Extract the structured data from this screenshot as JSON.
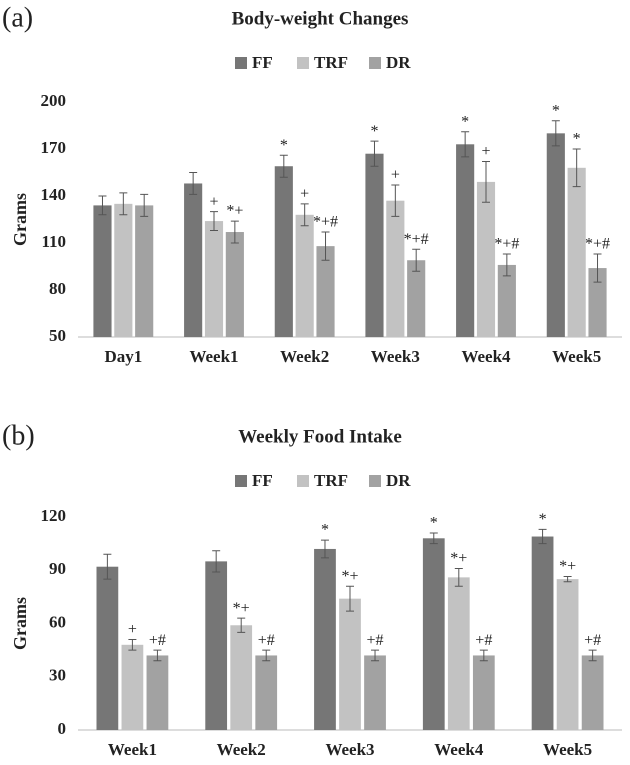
{
  "chart_data": [
    {
      "type": "bar",
      "panel": "(a)",
      "title": "Body-weight Changes",
      "y_label": "Grams",
      "legend": "top",
      "categories": [
        "Day1",
        "Week1",
        "Week2",
        "Week3",
        "Week4",
        "Week5"
      ],
      "ylim": [
        50,
        200
      ],
      "yticks": [
        50,
        80,
        110,
        140,
        170,
        200
      ],
      "series": [
        {
          "name": "FF",
          "color": "#767676",
          "values": [
            134,
            148,
            159,
            167,
            173,
            180
          ],
          "errors": [
            6,
            7,
            7,
            8,
            8,
            8
          ],
          "annotations": [
            null,
            null,
            "*",
            "*",
            "*",
            "*"
          ]
        },
        {
          "name": "TRF",
          "color": "#c2c2c2",
          "values": [
            135,
            124,
            128,
            137,
            149,
            158
          ],
          "errors": [
            7,
            6,
            7,
            10,
            13,
            12
          ],
          "annotations": [
            null,
            "+",
            "+",
            "+",
            "+",
            "*"
          ]
        },
        {
          "name": "DR",
          "color": "#a2a2a2",
          "values": [
            134,
            117,
            108,
            99,
            96,
            94
          ],
          "errors": [
            7,
            7,
            9,
            7,
            7,
            9
          ],
          "annotations": [
            null,
            "*+",
            "*+#",
            "*+#",
            "*+#",
            "*+#"
          ]
        }
      ]
    },
    {
      "type": "bar",
      "panel": "(b)",
      "title": "Weekly Food Intake",
      "y_label": "Grams",
      "legend": "top",
      "categories": [
        "Week1",
        "Week2",
        "Week3",
        "Week4",
        "Week5"
      ],
      "ylim": [
        0,
        120
      ],
      "yticks": [
        0,
        30,
        60,
        90,
        120
      ],
      "series": [
        {
          "name": "FF",
          "color": "#767676",
          "values": [
            92,
            95,
            102,
            108,
            109
          ],
          "errors": [
            7,
            6,
            5,
            3,
            4
          ],
          "annotations": [
            null,
            null,
            "*",
            "*",
            "*"
          ]
        },
        {
          "name": "TRF",
          "color": "#c2c2c2",
          "values": [
            48,
            59,
            74,
            86,
            85
          ],
          "errors": [
            3,
            4,
            7,
            5,
            1.5
          ],
          "annotations": [
            "+",
            "*+",
            "*+",
            "*+",
            "*+"
          ]
        },
        {
          "name": "DR",
          "color": "#a2a2a2",
          "values": [
            42,
            42,
            42,
            42,
            42
          ],
          "errors": [
            3,
            3,
            3,
            3,
            3
          ],
          "annotations": [
            "+#",
            "+#",
            "+#",
            "+#",
            "+#"
          ]
        }
      ]
    }
  ]
}
